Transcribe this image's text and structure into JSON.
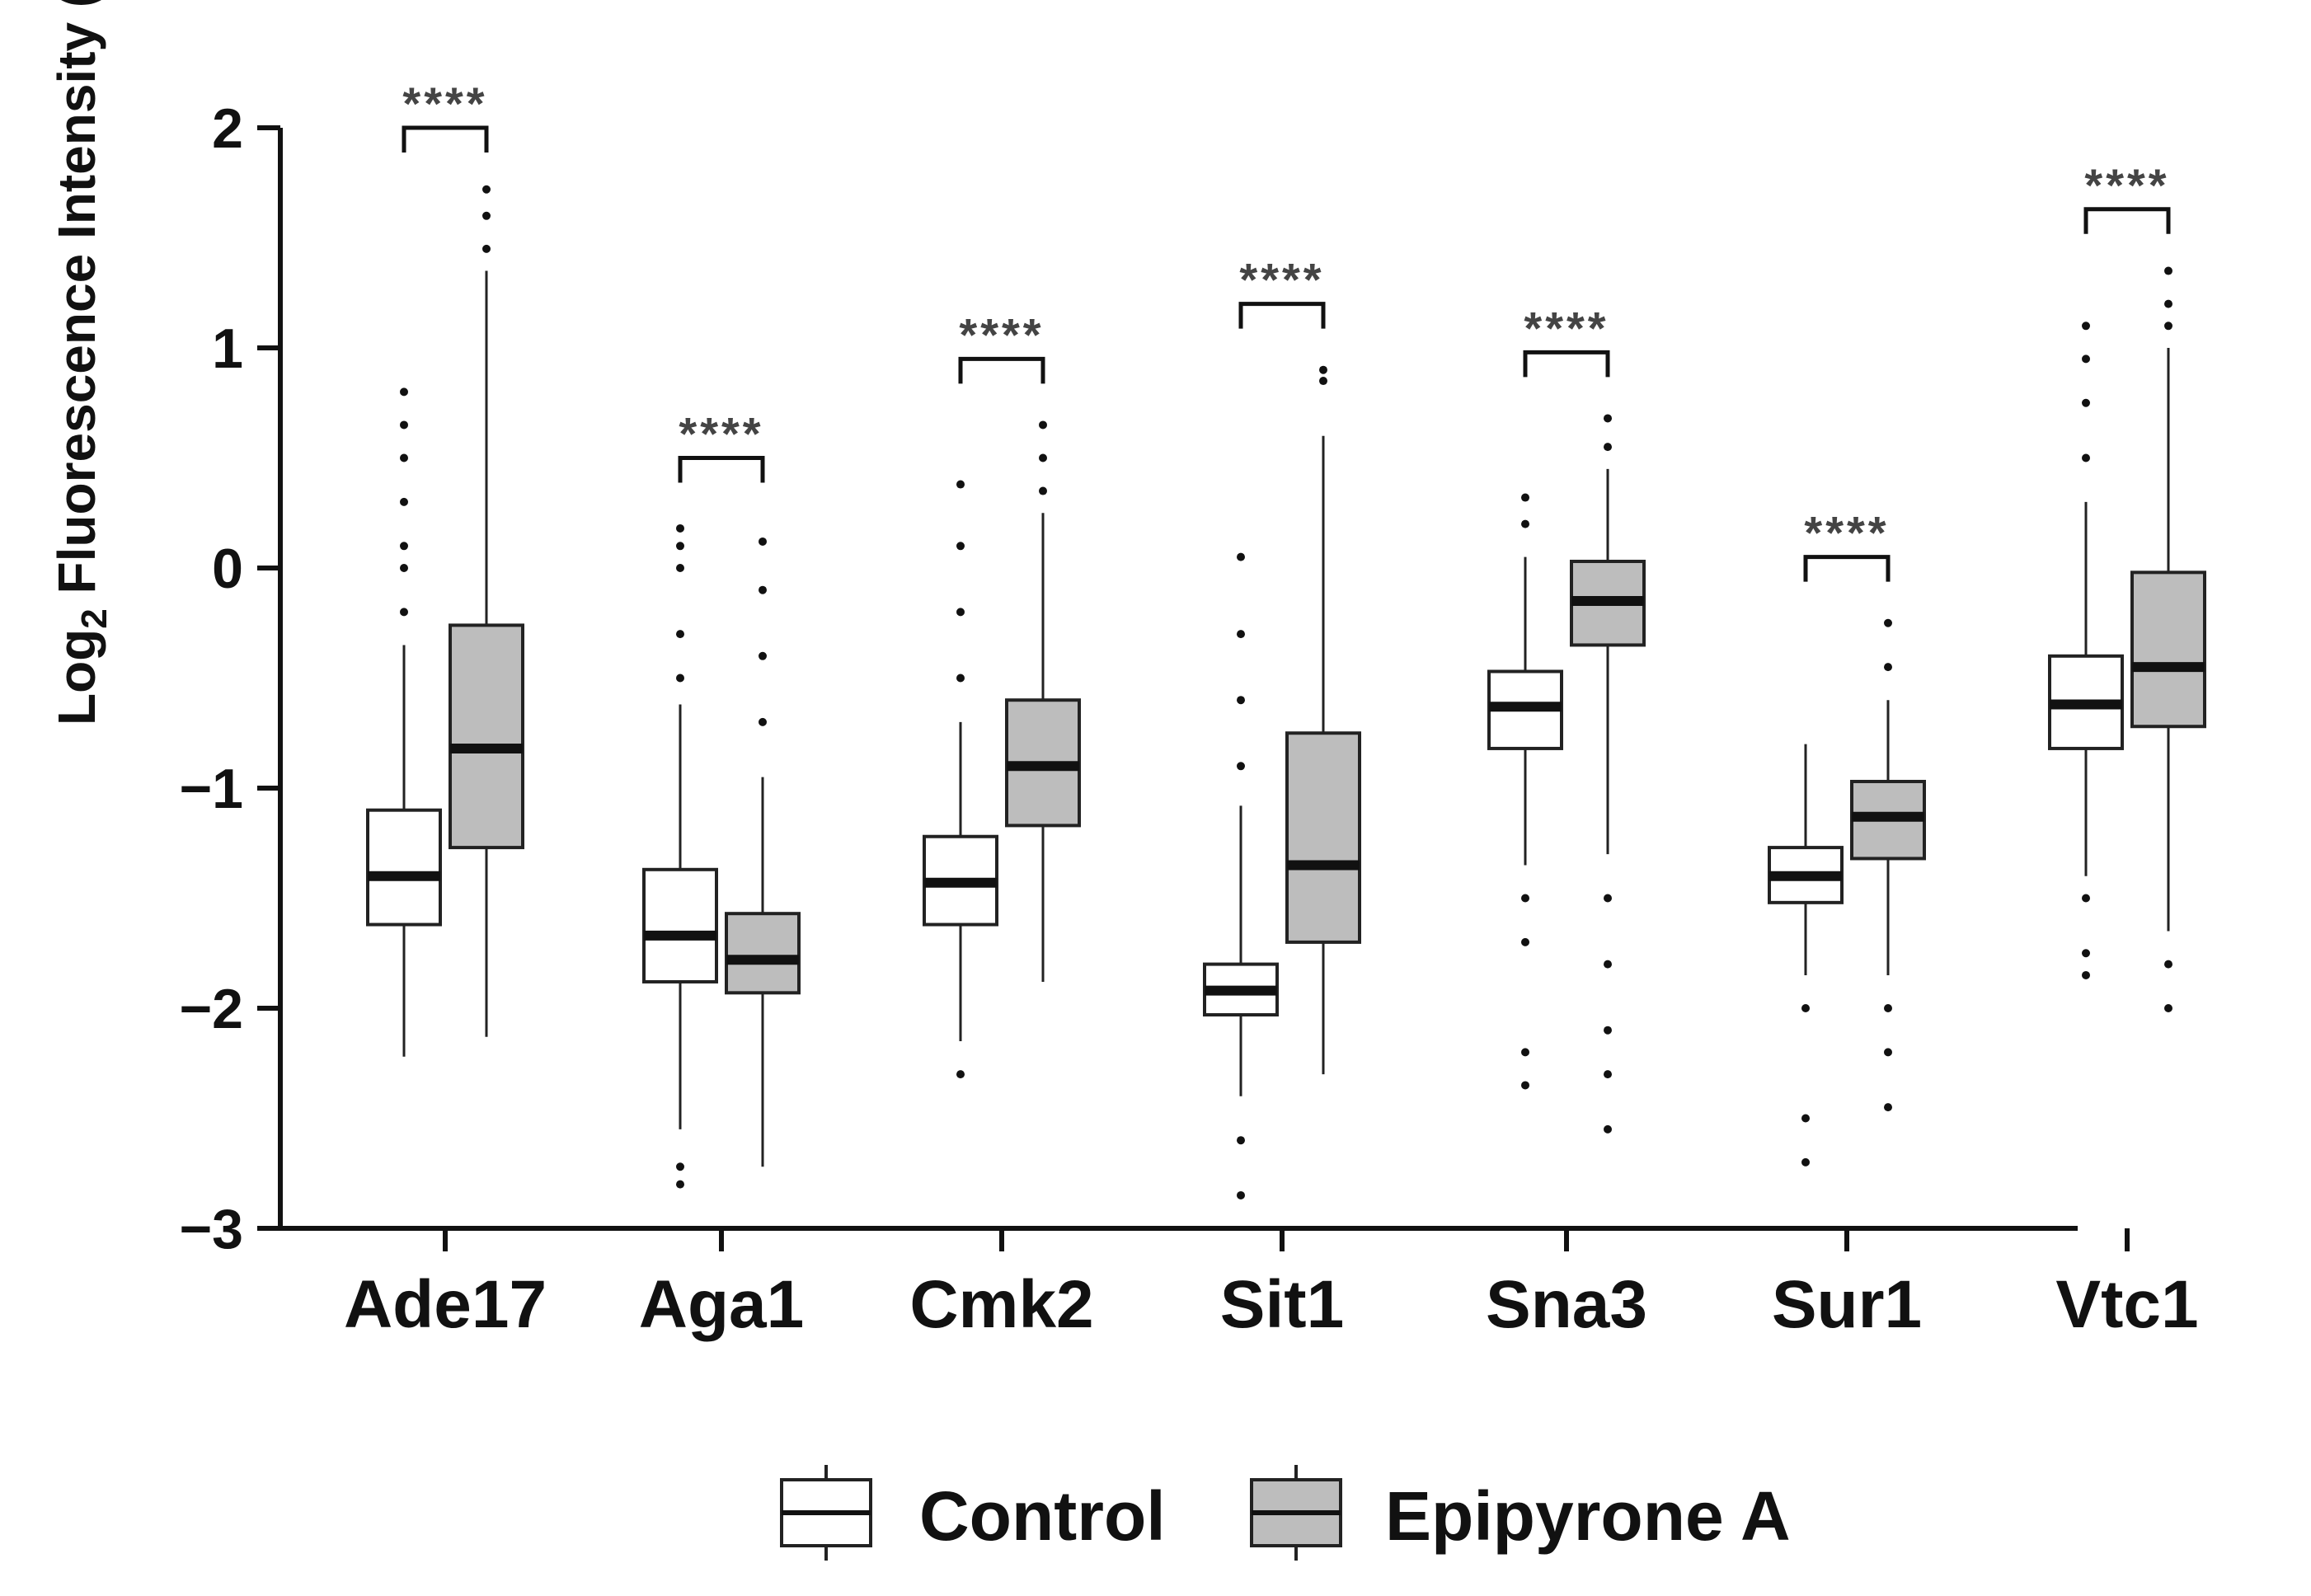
{
  "chart_data": {
    "type": "box",
    "ylabel": {
      "main": "Log",
      "sub": "2",
      "rest": " Fluorescence Intensity (a.u.)"
    },
    "xlabel": "",
    "ylim": [
      -3,
      2
    ],
    "yticks": [
      2,
      1,
      0,
      -1,
      -2,
      -3
    ],
    "ytick_labels": [
      "2",
      "1",
      "0",
      "−1",
      "−2",
      "−3"
    ],
    "categories": [
      "Ade17",
      "Aga1",
      "Cmk2",
      "Sit1",
      "Sna3",
      "Sur1",
      "Vtc1"
    ],
    "series": [
      {
        "name": "Control",
        "color": "#ffffff",
        "boxes": [
          {
            "whislo": -2.22,
            "q1": -1.62,
            "med": -1.4,
            "q3": -1.1,
            "whishi": -0.35,
            "outliers": [
              -0.2,
              0.0,
              0.1,
              0.3,
              0.5,
              0.65,
              0.8
            ]
          },
          {
            "whislo": -2.55,
            "q1": -1.88,
            "med": -1.67,
            "q3": -1.37,
            "whishi": -0.62,
            "outliers": [
              -2.72,
              -2.8,
              -0.5,
              -0.3,
              0.0,
              0.1,
              0.18
            ]
          },
          {
            "whislo": -2.15,
            "q1": -1.62,
            "med": -1.43,
            "q3": -1.22,
            "whishi": -0.7,
            "outliers": [
              -2.3,
              -0.5,
              -0.2,
              0.1,
              0.38
            ]
          },
          {
            "whislo": -2.4,
            "q1": -2.03,
            "med": -1.92,
            "q3": -1.8,
            "whishi": -1.08,
            "outliers": [
              -2.6,
              -2.85,
              -0.9,
              -0.6,
              -0.3,
              0.05
            ]
          },
          {
            "whislo": -1.35,
            "q1": -0.82,
            "med": -0.63,
            "q3": -0.47,
            "whishi": 0.05,
            "outliers": [
              -1.5,
              -1.7,
              -2.2,
              -2.35,
              0.2,
              0.32
            ]
          },
          {
            "whislo": -1.85,
            "q1": -1.52,
            "med": -1.4,
            "q3": -1.27,
            "whishi": -0.8,
            "outliers": [
              -2.0,
              -2.5,
              -2.7
            ]
          },
          {
            "whislo": -1.4,
            "q1": -0.82,
            "med": -0.62,
            "q3": -0.4,
            "whishi": 0.3,
            "outliers": [
              -1.5,
              -1.75,
              -1.85,
              0.5,
              0.75,
              0.95,
              1.1
            ]
          }
        ]
      },
      {
        "name": "Epipyrone A",
        "color": "#bdbdbd",
        "boxes": [
          {
            "whislo": -2.13,
            "q1": -1.27,
            "med": -0.82,
            "q3": -0.26,
            "whishi": 1.35,
            "outliers": [
              1.45,
              1.6,
              1.72
            ]
          },
          {
            "whislo": -2.72,
            "q1": -1.93,
            "med": -1.78,
            "q3": -1.57,
            "whishi": -0.95,
            "outliers": [
              -0.7,
              -0.4,
              -0.1,
              0.12
            ]
          },
          {
            "whislo": -1.88,
            "q1": -1.17,
            "med": -0.9,
            "q3": -0.6,
            "whishi": 0.25,
            "outliers": [
              0.35,
              0.5,
              0.65
            ]
          },
          {
            "whislo": -2.3,
            "q1": -1.7,
            "med": -1.35,
            "q3": -0.75,
            "whishi": 0.6,
            "outliers": [
              0.85,
              0.9
            ]
          },
          {
            "whislo": -1.3,
            "q1": -0.35,
            "med": -0.15,
            "q3": 0.03,
            "whishi": 0.45,
            "outliers": [
              -1.5,
              -1.8,
              -2.1,
              -2.3,
              -2.55,
              0.55,
              0.68
            ]
          },
          {
            "whislo": -1.85,
            "q1": -1.32,
            "med": -1.13,
            "q3": -0.97,
            "whishi": -0.6,
            "outliers": [
              -2.0,
              -2.2,
              -2.45,
              -0.45,
              -0.25
            ]
          },
          {
            "whislo": -1.65,
            "q1": -0.72,
            "med": -0.45,
            "q3": -0.02,
            "whishi": 1.0,
            "outliers": [
              -1.8,
              -2.0,
              1.1,
              1.2,
              1.35
            ]
          }
        ]
      }
    ],
    "significance": [
      {
        "category": "Ade17",
        "label": "****",
        "y": 2.0
      },
      {
        "category": "Aga1",
        "label": "****",
        "y": 0.5
      },
      {
        "category": "Cmk2",
        "label": "****",
        "y": 0.95
      },
      {
        "category": "Sit1",
        "label": "****",
        "y": 1.2
      },
      {
        "category": "Sna3",
        "label": "****",
        "y": 0.98
      },
      {
        "category": "Sur1",
        "label": "****",
        "y": 0.05
      },
      {
        "category": "Vtc1",
        "label": "****",
        "y": 1.63
      }
    ],
    "legend": {
      "position": "bottom-center",
      "entries": [
        "Control",
        "Epipyrone A"
      ]
    },
    "grid": false
  }
}
